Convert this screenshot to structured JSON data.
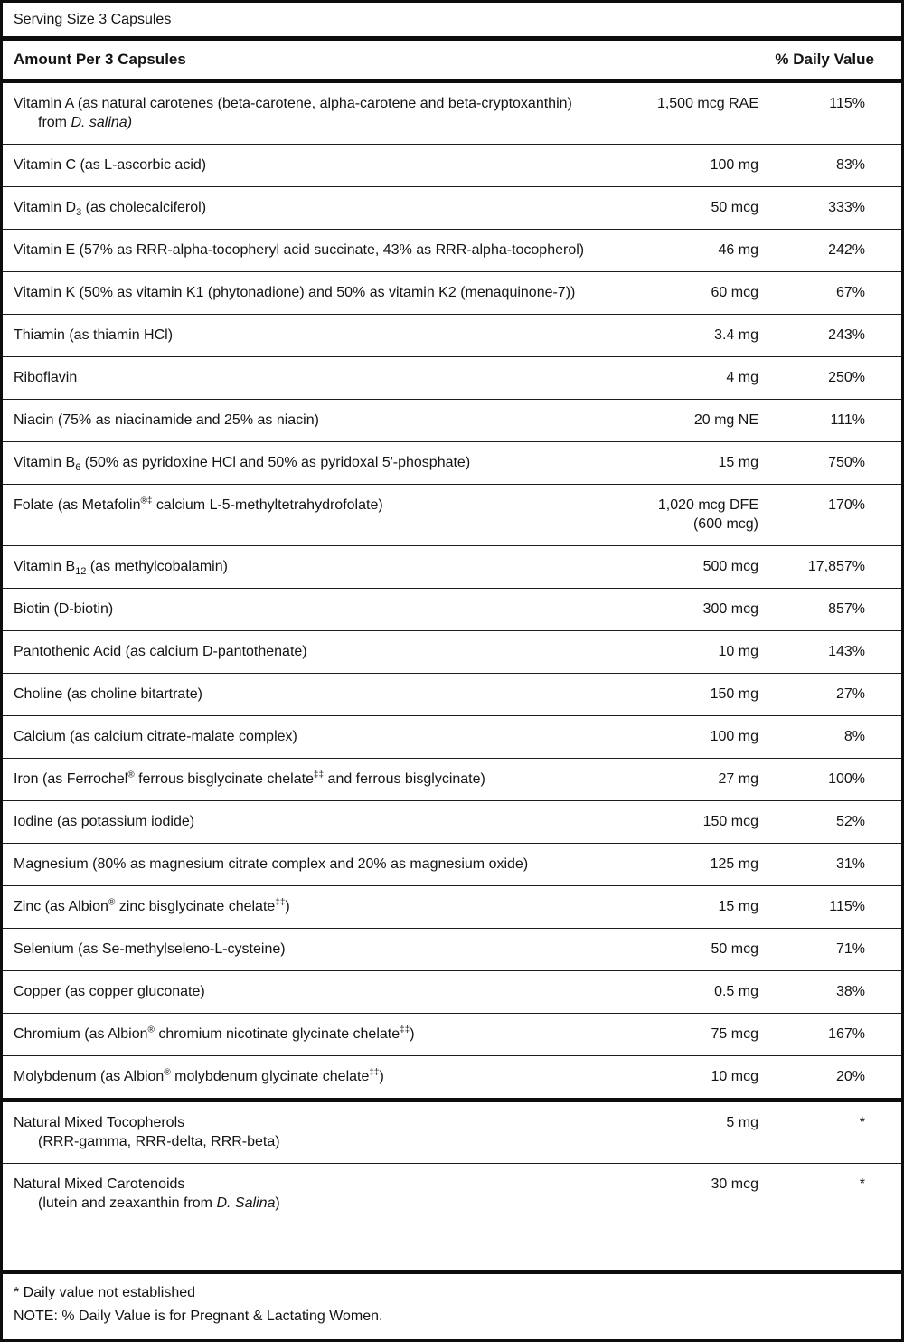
{
  "serving_size": "Serving Size 3 Capsules",
  "header": {
    "left": "Amount Per 3 Capsules",
    "right": "% Daily Value"
  },
  "rows": [
    {
      "name": "Vitamin A (as natural carotenes (beta-carotene, alpha-carotene and beta-cryptoxanthin)",
      "name2": "from _D. salina)_",
      "amount": "1,500 mcg RAE",
      "dv": "115%"
    },
    {
      "name": "Vitamin C (as L-ascorbic acid)",
      "amount": "100 mg",
      "dv": "83%"
    },
    {
      "name": "Vitamin D~3~ (as cholecalciferol)",
      "amount": "50 mcg",
      "dv": "333%"
    },
    {
      "name": "Vitamin E (57% as RRR-alpha-tocopheryl acid succinate, 43% as RRR-alpha-tocopherol)",
      "amount": "46 mg",
      "dv": "242%"
    },
    {
      "name": "Vitamin K (50% as vitamin K1 (phytonadione) and 50% as vitamin K2 (menaquinone-7))",
      "amount": "60 mcg",
      "dv": "67%"
    },
    {
      "name": "Thiamin (as thiamin HCl)",
      "amount": "3.4 mg",
      "dv": "243%"
    },
    {
      "name": "Riboflavin",
      "amount": "4 mg",
      "dv": "250%"
    },
    {
      "name": "Niacin (75% as niacinamide and 25% as niacin)",
      "amount": "20 mg NE",
      "dv": "111%"
    },
    {
      "name": "Vitamin B~6~ (50% as pyridoxine HCl and 50% as pyridoxal 5'-phosphate)",
      "amount": "15 mg",
      "dv": "750%"
    },
    {
      "name": "Folate (as Metafolin^®‡^ calcium L-5-methyltetrahydrofolate)",
      "amount": "1,020 mcg DFE",
      "amount2": "(600 mcg)",
      "dv": "170%"
    },
    {
      "name": "Vitamin B~12~ (as methylcobalamin)",
      "amount": "500 mcg",
      "dv": "17,857%"
    },
    {
      "name": "Biotin (D-biotin)",
      "amount": "300 mcg",
      "dv": "857%"
    },
    {
      "name": "Pantothenic Acid (as calcium D-pantothenate)",
      "amount": "10 mg",
      "dv": "143%"
    },
    {
      "name": "Choline (as choline bitartrate)",
      "amount": "150 mg",
      "dv": "27%"
    },
    {
      "name": "Calcium (as calcium citrate-malate complex)",
      "amount": "100 mg",
      "dv": "8%"
    },
    {
      "name": "Iron (as Ferrochel^®^ ferrous bisglycinate chelate^‡‡^ and ferrous bisglycinate)",
      "amount": "27 mg",
      "dv": "100%"
    },
    {
      "name": "Iodine (as potassium iodide)",
      "amount": "150 mcg",
      "dv": "52%"
    },
    {
      "name": "Magnesium (80% as magnesium citrate complex and 20% as magnesium oxide)",
      "amount": "125 mg",
      "dv": "31%"
    },
    {
      "name": "Zinc (as Albion^®^ zinc bisglycinate chelate^‡‡^)",
      "amount": "15 mg",
      "dv": "115%"
    },
    {
      "name": "Selenium (as Se-methylseleno-L-cysteine)",
      "amount": "50 mcg",
      "dv": "71%"
    },
    {
      "name": "Copper (as copper gluconate)",
      "amount": "0.5 mg",
      "dv": "38%"
    },
    {
      "name": "Chromium (as Albion^®^ chromium nicotinate glycinate chelate^‡‡^)",
      "amount": "75 mcg",
      "dv": "167%"
    },
    {
      "name": "Molybdenum (as Albion^®^ molybdenum glycinate chelate^‡‡^)",
      "amount": "10 mcg",
      "dv": "20%"
    }
  ],
  "extra_rows": [
    {
      "name": "Natural Mixed Tocopherols",
      "name2": "(RRR-gamma, RRR-delta, RRR-beta)",
      "amount": "5 mg",
      "dv": "*"
    },
    {
      "name": "Natural Mixed Carotenoids",
      "name2": "(lutein and zeaxanthin from _D. Salina_)",
      "amount": "30 mcg",
      "dv": "*"
    }
  ],
  "footnotes": [
    "* Daily value not established",
    "NOTE: % Daily Value is for Pregnant & Lactating Women."
  ]
}
